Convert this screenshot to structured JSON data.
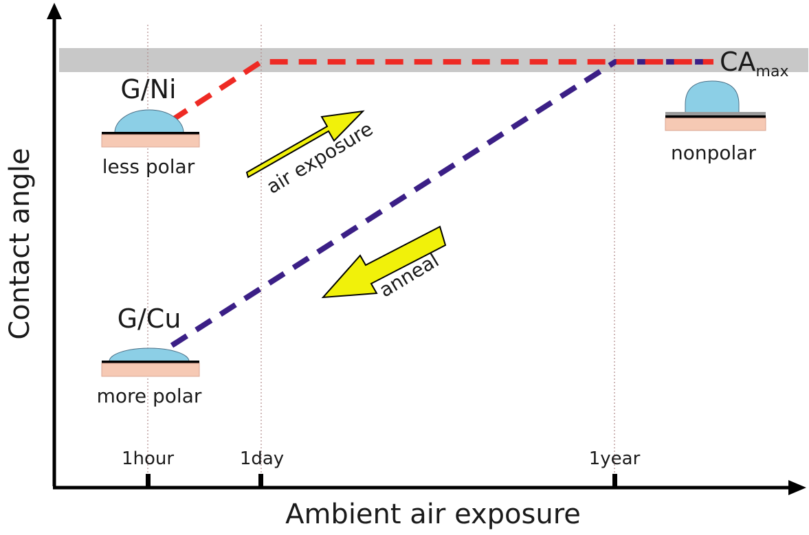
{
  "title": "",
  "axes": {
    "x_label": "Ambient air exposure",
    "y_label": "Contact angle"
  },
  "ticks": [
    "1hour",
    "1day",
    "1year"
  ],
  "band_label": {
    "base": "CA",
    "sub": "max"
  },
  "samples": {
    "gni": {
      "name": "G/Ni",
      "caption": "less polar"
    },
    "gcu": {
      "name": "G/Cu",
      "caption": "more polar"
    },
    "final": {
      "caption": "nonpolar"
    }
  },
  "arrows": {
    "air": "air exposure",
    "anneal": "anneal"
  },
  "colors": {
    "gni_line": "#ee2a24",
    "gcu_line": "#3b1f86",
    "band": "#c8c8c8",
    "droplet": "#8ccfe6",
    "substrate": "#f6c9b4",
    "arrow_fill": "#f1f10a",
    "gridline": "#b08a8a"
  },
  "icons": {
    "droplet": "water-droplet-icon",
    "arrow": "block-arrow-icon"
  }
}
